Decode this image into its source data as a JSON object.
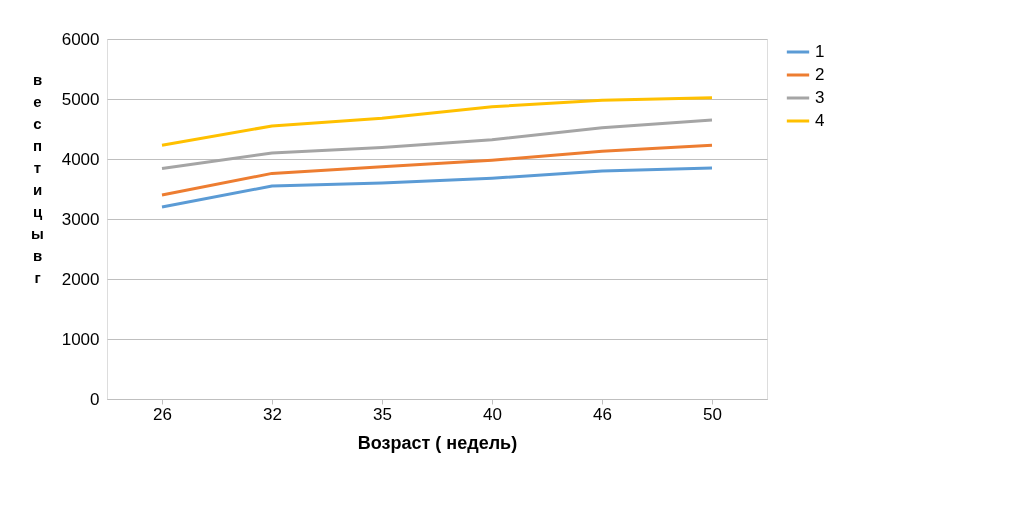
{
  "chart_data": {
    "type": "line",
    "xlabel": "Возраст ( недель)",
    "ylabel": "вес птицы в г",
    "categories": [
      "26",
      "32",
      "35",
      "40",
      "46",
      "50"
    ],
    "series": [
      {
        "name": "1",
        "color": "#5b9bd5",
        "values": [
          3200,
          3550,
          3600,
          3680,
          3800,
          3850
        ]
      },
      {
        "name": "2",
        "color": "#ed7d31",
        "values": [
          3400,
          3760,
          3870,
          3980,
          4130,
          4230
        ]
      },
      {
        "name": "3",
        "color": "#a5a5a5",
        "values": [
          3840,
          4100,
          4190,
          4320,
          4520,
          4650
        ]
      },
      {
        "name": "4",
        "color": "#ffc000",
        "values": [
          4230,
          4550,
          4680,
          4870,
          4980,
          5020
        ]
      }
    ],
    "ylim": [
      0,
      6000
    ],
    "yticks": [
      0,
      1000,
      2000,
      3000,
      4000,
      5000,
      6000
    ],
    "grid": "y",
    "legend": "right",
    "marker": "none",
    "line_style": "solid"
  }
}
